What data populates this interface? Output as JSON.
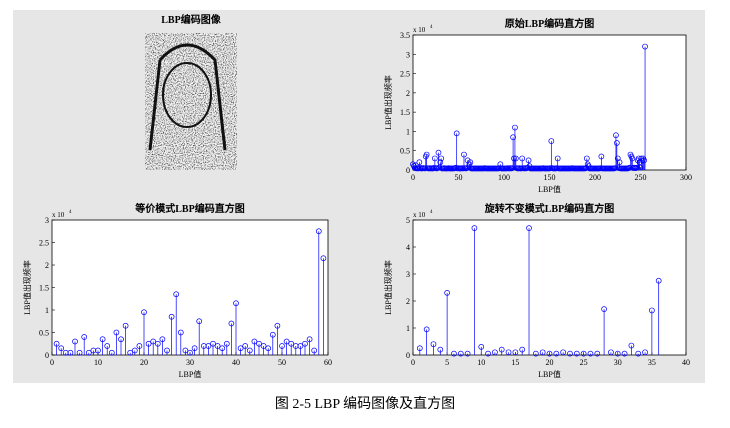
{
  "image": {
    "title": "LBP编码图像"
  },
  "caption": "图 2-5 LBP 编码图像及直方图",
  "chart_data": [
    {
      "type": "stem",
      "title": "原始LBP编码直方图",
      "xlabel": "LBP值",
      "ylabel": "LBP值出现频率",
      "color": "#0000ff",
      "y_multiplier": {
        "base": "x 10",
        "exponent": "4"
      },
      "xlim": [
        0,
        300
      ],
      "xticks": [
        0,
        50,
        100,
        150,
        200,
        250,
        300
      ],
      "ylim": [
        0,
        3.5
      ],
      "yticks": [
        0,
        0.5,
        1,
        1.5,
        2,
        2.5,
        3,
        3.5
      ],
      "x": [
        0,
        1,
        2,
        3,
        4,
        5,
        6,
        7,
        8,
        9,
        10,
        11,
        12,
        13,
        14,
        15,
        16,
        17,
        18,
        19,
        20,
        21,
        22,
        23,
        24,
        25,
        26,
        27,
        28,
        29,
        30,
        31,
        32,
        33,
        34,
        35,
        36,
        37,
        38,
        39,
        40,
        41,
        42,
        43,
        44,
        45,
        46,
        47,
        48,
        49,
        50,
        51,
        52,
        53,
        54,
        55,
        56,
        57,
        58,
        59,
        60,
        61,
        62,
        63,
        64,
        65,
        66,
        67,
        68,
        69,
        70,
        71,
        72,
        73,
        74,
        75,
        76,
        77,
        78,
        79,
        80,
        81,
        82,
        83,
        84,
        85,
        86,
        87,
        88,
        89,
        90,
        91,
        92,
        93,
        94,
        95,
        96,
        97,
        98,
        99,
        100,
        101,
        102,
        103,
        104,
        105,
        106,
        107,
        108,
        109,
        110,
        111,
        112,
        113,
        114,
        115,
        116,
        117,
        118,
        119,
        120,
        121,
        122,
        123,
        124,
        125,
        126,
        127,
        128,
        129,
        130,
        131,
        132,
        133,
        134,
        135,
        136,
        137,
        138,
        139,
        140,
        141,
        142,
        143,
        144,
        145,
        146,
        147,
        148,
        149,
        150,
        151,
        152,
        153,
        154,
        155,
        156,
        157,
        158,
        159,
        160,
        161,
        162,
        163,
        164,
        165,
        166,
        167,
        168,
        169,
        170,
        171,
        172,
        173,
        174,
        175,
        176,
        177,
        178,
        179,
        180,
        181,
        182,
        183,
        184,
        185,
        186,
        187,
        188,
        189,
        190,
        191,
        192,
        193,
        194,
        195,
        196,
        197,
        198,
        199,
        200,
        201,
        202,
        203,
        204,
        205,
        206,
        207,
        208,
        209,
        210,
        211,
        212,
        213,
        214,
        215,
        216,
        217,
        218,
        219,
        220,
        221,
        222,
        223,
        224,
        225,
        226,
        227,
        228,
        229,
        230,
        231,
        232,
        233,
        234,
        235,
        236,
        237,
        238,
        239,
        240,
        241,
        242,
        243,
        244,
        245,
        246,
        247,
        248,
        249,
        250,
        251,
        252,
        253,
        254,
        255
      ],
      "values": [
        0.15,
        0.1,
        0.05,
        0.12,
        0.04,
        0.05,
        0.04,
        0.2,
        0.06,
        0.04,
        0.04,
        0.05,
        0.05,
        0.04,
        0.35,
        0.4,
        0.05,
        0.04,
        0.04,
        0.05,
        0.04,
        0.04,
        0.04,
        0.06,
        0.3,
        0.05,
        0.04,
        0.05,
        0.45,
        0.06,
        0.2,
        0.3,
        0.04,
        0.04,
        0.05,
        0.04,
        0.04,
        0.04,
        0.04,
        0.05,
        0.04,
        0.04,
        0.04,
        0.04,
        0.04,
        0.04,
        0.05,
        0.06,
        0.95,
        0.04,
        0.05,
        0.04,
        0.04,
        0.04,
        0.05,
        0.04,
        0.4,
        0.05,
        0.04,
        0.05,
        0.25,
        0.06,
        0.15,
        0.2,
        0.04,
        0.04,
        0.04,
        0.04,
        0.04,
        0.04,
        0.04,
        0.04,
        0.04,
        0.04,
        0.04,
        0.04,
        0.04,
        0.04,
        0.04,
        0.05,
        0.04,
        0.04,
        0.04,
        0.04,
        0.04,
        0.04,
        0.04,
        0.04,
        0.04,
        0.04,
        0.04,
        0.04,
        0.04,
        0.04,
        0.04,
        0.05,
        0.15,
        0.04,
        0.04,
        0.04,
        0.04,
        0.04,
        0.04,
        0.04,
        0.05,
        0.04,
        0.04,
        0.05,
        0.04,
        0.05,
        0.85,
        0.3,
        1.1,
        0.3,
        0.05,
        0.04,
        0.04,
        0.05,
        0.04,
        0.04,
        0.3,
        0.05,
        0.04,
        0.05,
        0.04,
        0.05,
        0.06,
        0.25,
        0.1,
        0.04,
        0.04,
        0.04,
        0.04,
        0.04,
        0.04,
        0.04,
        0.04,
        0.04,
        0.04,
        0.04,
        0.04,
        0.04,
        0.04,
        0.05,
        0.04,
        0.04,
        0.04,
        0.04,
        0.04,
        0.04,
        0.04,
        0.05,
        0.75,
        0.05,
        0.04,
        0.04,
        0.04,
        0.04,
        0.05,
        0.3,
        0.04,
        0.04,
        0.04,
        0.04,
        0.04,
        0.04,
        0.04,
        0.04,
        0.04,
        0.04,
        0.04,
        0.04,
        0.04,
        0.04,
        0.04,
        0.05,
        0.04,
        0.04,
        0.04,
        0.04,
        0.04,
        0.04,
        0.04,
        0.04,
        0.04,
        0.04,
        0.04,
        0.04,
        0.04,
        0.04,
        0.05,
        0.3,
        0.15,
        0.1,
        0.04,
        0.04,
        0.04,
        0.04,
        0.04,
        0.04,
        0.04,
        0.04,
        0.04,
        0.04,
        0.04,
        0.04,
        0.05,
        0.35,
        0.04,
        0.04,
        0.04,
        0.04,
        0.04,
        0.04,
        0.04,
        0.04,
        0.04,
        0.04,
        0.04,
        0.04,
        0.04,
        0.04,
        0.05,
        0.9,
        0.7,
        0.3,
        0.05,
        0.2,
        0.04,
        0.04,
        0.04,
        0.04,
        0.04,
        0.04,
        0.04,
        0.04,
        0.04,
        0.05,
        0.06,
        0.4,
        0.35,
        0.3,
        0.05,
        0.06,
        0.05,
        0.05,
        0.06,
        0.25,
        0.3,
        0.2,
        0.06,
        0.3,
        0.25,
        0.3,
        0.25,
        3.2
      ]
    },
    {
      "type": "stem",
      "title": "等价模式LBP编码直方图",
      "xlabel": "LBP值",
      "ylabel": "LBP值出现频率",
      "color": "#0000ff",
      "y_multiplier": {
        "base": "x 10",
        "exponent": "4"
      },
      "xlim": [
        0,
        60
      ],
      "xticks": [
        0,
        10,
        20,
        30,
        40,
        50,
        60
      ],
      "ylim": [
        0,
        3
      ],
      "yticks": [
        0,
        0.5,
        1,
        1.5,
        2,
        2.5,
        3
      ],
      "x": [
        1,
        2,
        3,
        4,
        5,
        6,
        7,
        8,
        9,
        10,
        11,
        12,
        13,
        14,
        15,
        16,
        17,
        18,
        19,
        20,
        21,
        22,
        23,
        24,
        25,
        26,
        27,
        28,
        29,
        30,
        31,
        32,
        33,
        34,
        35,
        36,
        37,
        38,
        39,
        40,
        41,
        42,
        43,
        44,
        45,
        46,
        47,
        48,
        49,
        50,
        51,
        52,
        53,
        54,
        55,
        56,
        57,
        58,
        59
      ],
      "values": [
        0.25,
        0.15,
        0.05,
        0.05,
        0.3,
        0.05,
        0.4,
        0.05,
        0.1,
        0.1,
        0.35,
        0.2,
        0.05,
        0.5,
        0.35,
        0.65,
        0.05,
        0.1,
        0.2,
        0.95,
        0.25,
        0.3,
        0.25,
        0.35,
        0.1,
        0.85,
        1.35,
        0.5,
        0.1,
        0.05,
        0.15,
        0.75,
        0.2,
        0.2,
        0.25,
        0.2,
        0.15,
        0.25,
        0.7,
        1.15,
        0.15,
        0.2,
        0.1,
        0.3,
        0.25,
        0.2,
        0.15,
        0.45,
        0.65,
        0.2,
        0.3,
        0.25,
        0.2,
        0.2,
        0.25,
        0.35,
        0.1,
        2.75,
        2.15
      ]
    },
    {
      "type": "stem",
      "title": "旋转不变模式LBP编码直方图",
      "xlabel": "LBP值",
      "ylabel": "LBP值出现频率",
      "color": "#0000ff",
      "y_multiplier": {
        "base": "x 10",
        "exponent": "4"
      },
      "xlim": [
        0,
        40
      ],
      "xticks": [
        0,
        5,
        10,
        15,
        20,
        25,
        30,
        35,
        40
      ],
      "ylim": [
        0,
        5
      ],
      "yticks": [
        0,
        1,
        2,
        3,
        4,
        5
      ],
      "x": [
        1,
        2,
        3,
        4,
        5,
        6,
        7,
        8,
        9,
        10,
        11,
        12,
        13,
        14,
        15,
        16,
        17,
        18,
        19,
        20,
        21,
        22,
        23,
        24,
        25,
        26,
        27,
        28,
        29,
        30,
        31,
        32,
        33,
        34,
        35,
        36
      ],
      "values": [
        0.25,
        0.95,
        0.4,
        0.2,
        2.3,
        0.05,
        0.05,
        0.05,
        4.7,
        0.3,
        0.05,
        0.1,
        0.2,
        0.1,
        0.1,
        0.2,
        4.7,
        0.05,
        0.1,
        0.05,
        0.05,
        0.1,
        0.05,
        0.05,
        0.05,
        0.05,
        0.05,
        1.7,
        0.1,
        0.05,
        0.05,
        0.35,
        0.05,
        0.1,
        1.65,
        2.75
      ]
    }
  ]
}
